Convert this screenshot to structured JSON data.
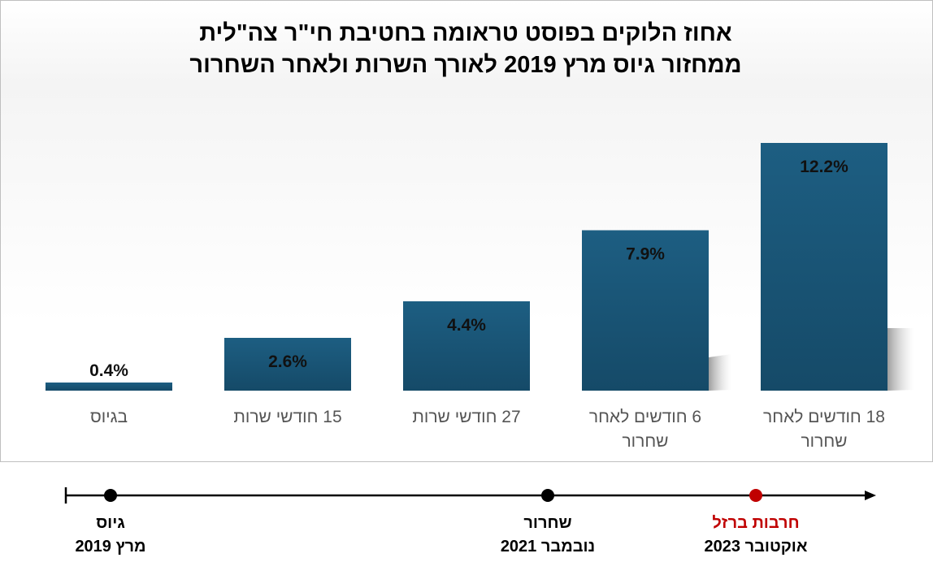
{
  "chart_data": {
    "type": "bar",
    "title_lines": [
      "אחוז הלוקים בפוסט טראומה בחטיבת חי\"ר צה\"לית",
      "ממחזור גיוס מרץ 2019 לאורך השרות ולאחר השחרור"
    ],
    "categories": [
      "בגיוס",
      "15 חודשי שרות",
      "27 חודשי שרות",
      "6 חודשים לאחר שחרור",
      "18 חודשים לאחר שחרור"
    ],
    "values": [
      0.4,
      2.6,
      4.4,
      7.9,
      12.2
    ],
    "data_labels": [
      "0.4%",
      "2.6%",
      "4.4%",
      "7.9%",
      "12.2%"
    ],
    "ylim": [
      0,
      12.2
    ],
    "grid": false,
    "legend": "none",
    "bar_color": "#1f5f82",
    "xlabel": "",
    "ylabel": ""
  },
  "timeline": {
    "events": [
      {
        "line1": "גיוס",
        "line2": "מרץ 2019",
        "color": "#000000"
      },
      {
        "line1": "שחרור",
        "line2": "נובמבר 2021",
        "color": "#000000"
      },
      {
        "line1": "חרבות ברזל",
        "line2": "אוקטובר 2023",
        "color": "#c00000"
      }
    ]
  }
}
